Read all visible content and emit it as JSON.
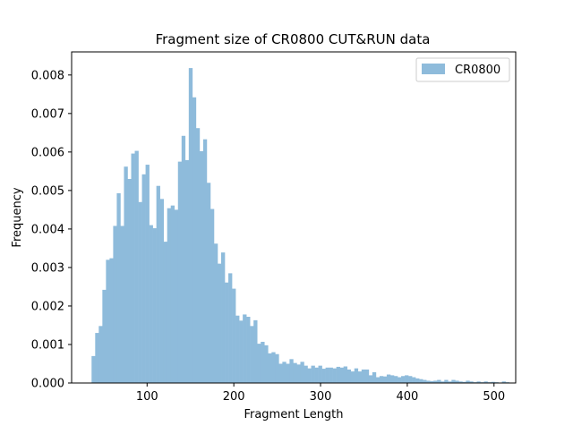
{
  "chart_data": {
    "type": "bar",
    "title": "Fragment size of CR0800 CUT&RUN data",
    "xlabel": "Fragment Length",
    "ylabel": "Frequency",
    "xlim": [
      13,
      525
    ],
    "ylim": [
      0,
      0.0086
    ],
    "x_ticks": [
      100,
      200,
      300,
      400,
      500
    ],
    "x_tick_labels": [
      "100",
      "200",
      "300",
      "400",
      "500"
    ],
    "y_ticks": [
      0,
      0.001,
      0.002,
      0.003,
      0.004,
      0.005,
      0.006,
      0.007,
      0.008
    ],
    "y_tick_labels": [
      "0.000",
      "0.001",
      "0.002",
      "0.003",
      "0.004",
      "0.005",
      "0.006",
      "0.007",
      "0.008"
    ],
    "bin_start": 36,
    "bin_width": 4.15,
    "series": [
      {
        "name": "CR0800",
        "color": "#8ebbdb",
        "values": [
          0.0007,
          0.0013,
          0.00148,
          0.00242,
          0.0032,
          0.00324,
          0.00408,
          0.00493,
          0.00408,
          0.00562,
          0.0053,
          0.00596,
          0.00603,
          0.0047,
          0.00542,
          0.00567,
          0.0041,
          0.00402,
          0.00512,
          0.00478,
          0.00367,
          0.00454,
          0.00461,
          0.0045,
          0.00575,
          0.00642,
          0.00579,
          0.00818,
          0.00742,
          0.00662,
          0.00602,
          0.00633,
          0.0052,
          0.00452,
          0.00362,
          0.0031,
          0.00339,
          0.00261,
          0.00285,
          0.00245,
          0.00175,
          0.00162,
          0.00178,
          0.00172,
          0.00148,
          0.00163,
          0.00102,
          0.00107,
          0.00098,
          0.00077,
          0.0008,
          0.00075,
          0.0005,
          0.00055,
          0.0005,
          0.00062,
          0.00052,
          0.00048,
          0.00055,
          0.00045,
          0.00038,
          0.00045,
          0.0004,
          0.00045,
          0.00037,
          0.0004,
          0.0004,
          0.00038,
          0.00042,
          0.0004,
          0.00043,
          0.00035,
          0.0003,
          0.00038,
          0.0003,
          0.00035,
          0.00035,
          0.0002,
          0.00028,
          0.00015,
          0.00018,
          0.00017,
          0.00022,
          0.0002,
          0.00018,
          0.00015,
          0.00018,
          0.0002,
          0.00018,
          0.00015,
          0.00012,
          0.0001,
          8e-05,
          6e-05,
          5e-05,
          6e-05,
          8e-05,
          4e-05,
          8e-05,
          4e-05,
          8e-05,
          6e-05,
          4e-05,
          3e-05,
          6e-05,
          4e-05,
          2e-05,
          4e-05,
          2e-05,
          4e-05,
          2e-05,
          3e-05,
          2e-05,
          1e-05,
          4e-05,
          2e-05
        ]
      }
    ],
    "legend": {
      "position": "top-right"
    },
    "grid": false
  }
}
